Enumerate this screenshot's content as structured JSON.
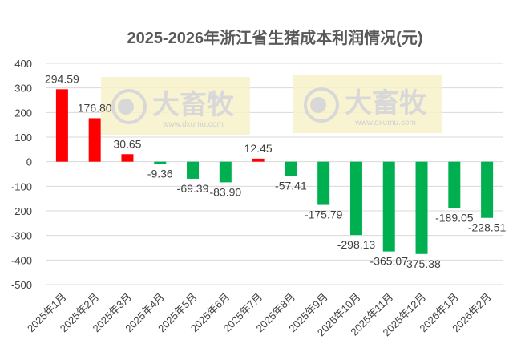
{
  "chart_data": {
    "type": "bar",
    "title": "2025-2026年浙江省生猪成本利润情况(元)",
    "xlabel": "",
    "ylabel": "",
    "ylim": [
      -500,
      400
    ],
    "yticks": [
      400,
      300,
      200,
      100,
      0,
      -100,
      -200,
      -300,
      -400,
      -500
    ],
    "grid": true,
    "categories": [
      "2025年1月",
      "2025年2月",
      "2025年3月",
      "2025年4月",
      "2025年5月",
      "2025年6月",
      "2025年7月",
      "2025年8月",
      "2025年9月",
      "2025年10月",
      "2025年11月",
      "2025年12月",
      "2026年1月",
      "2026年2月"
    ],
    "values": [
      294.59,
      176.8,
      30.65,
      -9.36,
      -69.39,
      -83.9,
      12.45,
      -57.41,
      -175.79,
      -298.13,
      -365.07,
      -375.38,
      -189.05,
      -228.51
    ],
    "colors": {
      "positive": "#FF0000",
      "negative": "#00B050",
      "grid": "#D9D9D9"
    }
  },
  "watermark": {
    "brand": "大畜牧",
    "url": "www.dxumu.com"
  }
}
